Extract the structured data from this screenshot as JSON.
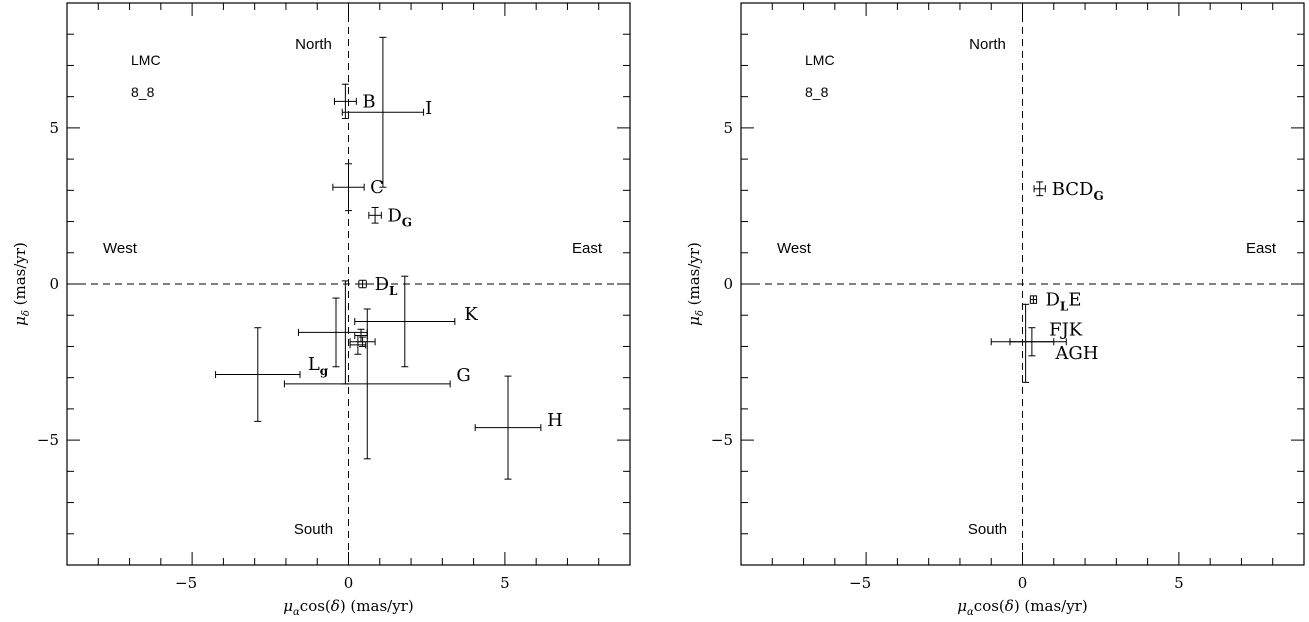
{
  "chart_data": [
    {
      "type": "scatter",
      "xlabel": "μαcos(δ) (mas/yr)",
      "ylabel": "μδ (mas/yr)",
      "xlim": [
        -9,
        9
      ],
      "ylim": [
        -9,
        9
      ],
      "xticks": [
        -5,
        0,
        5
      ],
      "yticks": [
        -5,
        0,
        5
      ],
      "tick_labels_x": [
        "−5",
        "0",
        "5"
      ],
      "tick_labels_y": [
        "−5",
        "0",
        "5"
      ],
      "annotations": {
        "field_name": "LMC",
        "field_id": "8_8",
        "north": "North",
        "south": "South",
        "west": "West",
        "east": "East"
      },
      "points": [
        {
          "label": "B",
          "sub": "",
          "x": -0.1,
          "y": 5.85,
          "xerr": 0.35,
          "yerr": 0.55
        },
        {
          "label": "I",
          "sub": "",
          "x": 1.1,
          "y": 5.5,
          "xerr": 1.3,
          "yerr": 2.4
        },
        {
          "label": "C",
          "sub": "",
          "x": 0.0,
          "y": 3.1,
          "xerr": 0.5,
          "yerr": 0.75
        },
        {
          "label": "D",
          "sub": "G",
          "x": 0.85,
          "y": 2.2,
          "xerr": 0.2,
          "yerr": 0.25
        },
        {
          "label": "D",
          "sub": "L",
          "x": 0.45,
          "y": 0.0,
          "xerr": 0.12,
          "yerr": 0.12
        },
        {
          "label": "K",
          "sub": "",
          "x": 1.8,
          "y": -1.2,
          "xerr": 1.6,
          "yerr": 1.45
        },
        {
          "label": "",
          "sub": "",
          "x": -0.4,
          "y": -1.55,
          "xerr": 0.0,
          "yerr": 1.1
        },
        {
          "label": "",
          "sub": "",
          "x": -0.1,
          "y": -1.55,
          "xerr": 0.0,
          "yerr": 1.65
        },
        {
          "label": "",
          "sub": "",
          "x": -0.5,
          "y": -1.55,
          "xerr": 1.1,
          "yerr": 0.0
        },
        {
          "label": "",
          "sub": "",
          "x": 0.4,
          "y": -1.65,
          "xerr": 0.2,
          "yerr": 0.2
        },
        {
          "label": "",
          "sub": "",
          "x": 0.45,
          "y": -1.85,
          "xerr": 0.4,
          "yerr": 0.15
        },
        {
          "label": "",
          "sub": "",
          "x": 0.3,
          "y": -1.95,
          "xerr": 0.25,
          "yerr": 0.3
        },
        {
          "label": "L",
          "sub": "g",
          "x": -2.9,
          "y": -2.9,
          "xerr": 1.35,
          "yerr": 1.5
        },
        {
          "label": "G",
          "sub": "",
          "x": 0.6,
          "y": -3.2,
          "xerr": 2.65,
          "yerr": 2.4
        },
        {
          "label": "H",
          "sub": "",
          "x": 5.1,
          "y": -4.6,
          "xerr": 1.05,
          "yerr": 1.65
        }
      ]
    },
    {
      "type": "scatter",
      "xlabel": "μαcos(δ) (mas/yr)",
      "ylabel": "μδ (mas/yr)",
      "xlim": [
        -9,
        9
      ],
      "ylim": [
        -9,
        9
      ],
      "xticks": [
        -5,
        0,
        5
      ],
      "yticks": [
        -5,
        0,
        5
      ],
      "tick_labels_x": [
        "−5",
        "0",
        "5"
      ],
      "tick_labels_y": [
        "−5",
        "0",
        "5"
      ],
      "annotations": {
        "field_name": "LMC",
        "field_id": "8_8",
        "north": "North",
        "south": "South",
        "west": "West",
        "east": "East"
      },
      "points": [
        {
          "label": "BCD",
          "sub": "G",
          "tail": "",
          "x": 0.55,
          "y": 3.05,
          "xerr": 0.18,
          "yerr": 0.22
        },
        {
          "label": "D",
          "sub": "L",
          "tail": "E",
          "x": 0.35,
          "y": -0.5,
          "xerr": 0.1,
          "yerr": 0.12
        },
        {
          "label": "",
          "sub": "",
          "tail": "",
          "x": 0.1,
          "y": -1.9,
          "xerr": 0.0,
          "yerr": 1.25
        },
        {
          "label": "FJK",
          "sub": "",
          "tail": "",
          "x": 0.3,
          "y": -1.85,
          "xerr": 0.7,
          "yerr": 0.45
        },
        {
          "label": "AGH",
          "sub": "",
          "tail": "",
          "x": 0.2,
          "y": -1.85,
          "xerr": 1.2,
          "yerr": 0.0
        }
      ]
    }
  ]
}
